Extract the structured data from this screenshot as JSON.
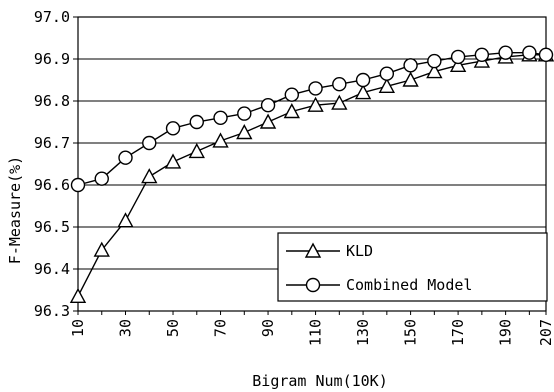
{
  "chart_data": {
    "type": "line",
    "title": "",
    "xlabel": "Bigram Num(10K)",
    "ylabel": "F-Measure(%)",
    "x": [
      10,
      20,
      30,
      40,
      50,
      60,
      70,
      80,
      90,
      100,
      110,
      120,
      130,
      140,
      150,
      160,
      170,
      180,
      190,
      200,
      207
    ],
    "x_tick_labels": [
      "10",
      "30",
      "50",
      "70",
      "90",
      "110",
      "130",
      "150",
      "170",
      "190",
      "207"
    ],
    "y_tick_labels": [
      "96.3",
      "96.4",
      "96.5",
      "96.6",
      "96.7",
      "96.8",
      "96.9",
      "97.0"
    ],
    "ylim": [
      96.3,
      97.0
    ],
    "grid": "horizontal",
    "legend_position": "bottom-right",
    "series": [
      {
        "name": "KLD",
        "marker": "triangle",
        "values": [
          96.335,
          96.445,
          96.515,
          96.62,
          96.655,
          96.68,
          96.705,
          96.725,
          96.75,
          96.775,
          96.79,
          96.795,
          96.82,
          96.835,
          96.85,
          96.87,
          96.885,
          96.895,
          96.905,
          96.91,
          96.91
        ]
      },
      {
        "name": "Combined Model",
        "marker": "circle",
        "values": [
          96.6,
          96.615,
          96.665,
          96.7,
          96.735,
          96.75,
          96.76,
          96.77,
          96.79,
          96.815,
          96.83,
          96.84,
          96.85,
          96.865,
          96.885,
          96.895,
          96.905,
          96.91,
          96.915,
          96.915,
          96.91
        ]
      }
    ]
  }
}
